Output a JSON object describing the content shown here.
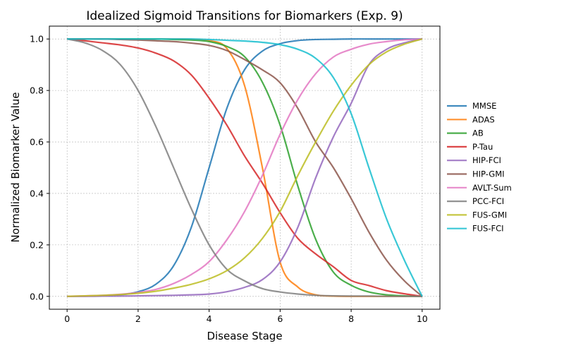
{
  "chart_data": {
    "type": "line",
    "title": "Idealized Sigmoid Transitions for Biomarkers (Exp. 9)",
    "xlabel": "Disease Stage",
    "ylabel": "Normalized Biomarker Value",
    "xlim": [
      -0.5,
      10.5
    ],
    "ylim": [
      -0.05,
      1.05
    ],
    "xticks": [
      0,
      2,
      4,
      6,
      8,
      10
    ],
    "yticks": [
      0.0,
      0.2,
      0.4,
      0.6,
      0.8,
      1.0
    ],
    "grid": true,
    "legend_position": "right",
    "x": [
      0,
      0.5,
      1,
      1.5,
      2,
      2.5,
      3,
      3.5,
      4,
      4.5,
      5,
      5.5,
      6,
      6.5,
      7,
      7.5,
      8,
      8.5,
      9,
      9.5,
      10
    ],
    "series": [
      {
        "name": "MMSE",
        "color": "#1f77b4",
        "values": [
          0,
          0.001,
          0.002,
          0.006,
          0.018,
          0.047,
          0.119,
          0.269,
          0.5,
          0.731,
          0.881,
          0.953,
          0.982,
          0.994,
          0.998,
          0.999,
          1,
          1,
          1,
          1,
          1
        ]
      },
      {
        "name": "ADAS",
        "color": "#ff7f0e",
        "values": [
          1,
          1,
          1,
          1,
          1,
          1,
          1,
          0.999,
          0.994,
          0.963,
          0.818,
          0.5,
          0.133,
          0.036,
          0.006,
          0.001,
          0,
          0,
          0,
          0,
          0
        ]
      },
      {
        "name": "AB",
        "color": "#2ca02c",
        "values": [
          1,
          1,
          1,
          1,
          1,
          1,
          0.998,
          0.996,
          0.99,
          0.971,
          0.931,
          0.832,
          0.665,
          0.428,
          0.222,
          0.094,
          0.043,
          0.017,
          0.006,
          0.002,
          0
        ]
      },
      {
        "name": "P-Tau",
        "color": "#d62728",
        "values": [
          1,
          0.993,
          0.985,
          0.977,
          0.965,
          0.945,
          0.915,
          0.86,
          0.77,
          0.665,
          0.545,
          0.44,
          0.325,
          0.225,
          0.165,
          0.115,
          0.062,
          0.042,
          0.022,
          0.01,
          0
        ]
      },
      {
        "name": "HIP-FCI",
        "color": "#9467bd",
        "values": [
          0,
          0,
          0.001,
          0.001,
          0.002,
          0.003,
          0.004,
          0.006,
          0.009,
          0.018,
          0.035,
          0.065,
          0.134,
          0.269,
          0.46,
          0.62,
          0.75,
          0.9,
          0.96,
          0.985,
          1
        ]
      },
      {
        "name": "HIP-GMI",
        "color": "#8c564b",
        "values": [
          1,
          1,
          1,
          0.998,
          0.996,
          0.993,
          0.99,
          0.984,
          0.975,
          0.955,
          0.92,
          0.88,
          0.83,
          0.73,
          0.6,
          0.5,
          0.38,
          0.25,
          0.14,
          0.06,
          0
        ]
      },
      {
        "name": "AVLT-Sum",
        "color": "#e377c2",
        "values": [
          0,
          0.002,
          0.004,
          0.008,
          0.015,
          0.027,
          0.05,
          0.085,
          0.135,
          0.22,
          0.33,
          0.47,
          0.63,
          0.765,
          0.865,
          0.93,
          0.96,
          0.98,
          0.99,
          0.997,
          1
        ]
      },
      {
        "name": "PCC-FCI",
        "color": "#7f7f7f",
        "values": [
          1,
          0.985,
          0.955,
          0.9,
          0.8,
          0.66,
          0.5,
          0.34,
          0.2,
          0.105,
          0.06,
          0.03,
          0.017,
          0.009,
          0.004,
          0.002,
          0.001,
          0.001,
          0,
          0,
          0
        ]
      },
      {
        "name": "FUS-GMI",
        "color": "#bcbd22",
        "values": [
          0,
          0.002,
          0.004,
          0.007,
          0.012,
          0.02,
          0.032,
          0.047,
          0.068,
          0.1,
          0.15,
          0.225,
          0.33,
          0.47,
          0.6,
          0.72,
          0.82,
          0.9,
          0.95,
          0.98,
          1
        ]
      },
      {
        "name": "FUS-FCI",
        "color": "#17becf",
        "values": [
          1,
          1,
          1,
          1,
          1,
          1,
          1,
          1,
          0.998,
          0.995,
          0.992,
          0.987,
          0.978,
          0.96,
          0.925,
          0.85,
          0.71,
          0.5,
          0.3,
          0.14,
          0
        ]
      }
    ]
  }
}
